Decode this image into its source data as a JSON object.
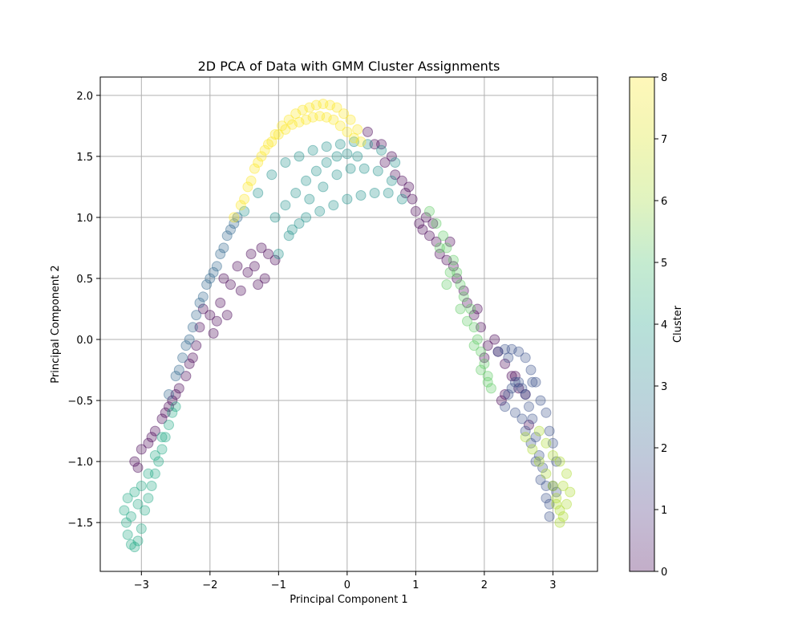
{
  "chart_data": {
    "type": "scatter",
    "title": "2D PCA of Data with GMM Cluster Assignments",
    "xlabel": "Principal Component 1",
    "ylabel": "Principal Component 2",
    "xlim": [
      -3.6,
      3.65
    ],
    "ylim": [
      -1.9,
      2.15
    ],
    "x_ticks": [
      "−3",
      "−2",
      "−1",
      "0",
      "1",
      "2",
      "3"
    ],
    "y_ticks": [
      "−1.5",
      "−1.0",
      "−0.5",
      "0.0",
      "0.5",
      "1.0",
      "1.5",
      "2.0"
    ],
    "grid": true,
    "colorbar": {
      "label": "Cluster",
      "range": [
        0,
        8
      ],
      "ticks": [
        "0",
        "1",
        "2",
        "3",
        "4",
        "5",
        "6",
        "7",
        "8"
      ],
      "colormap": "viridis"
    },
    "clusters": [
      {
        "cluster": 0,
        "color": "#440154",
        "points": [
          [
            -3.1,
            -1.0
          ],
          [
            -3.0,
            -0.9
          ],
          [
            -2.9,
            -0.85
          ],
          [
            -2.8,
            -0.75
          ],
          [
            -2.7,
            -0.65
          ],
          [
            -2.6,
            -0.55
          ],
          [
            -2.55,
            -0.5
          ],
          [
            -2.45,
            -0.4
          ],
          [
            -2.35,
            -0.3
          ],
          [
            -2.3,
            -0.2
          ],
          [
            -2.2,
            -0.05
          ],
          [
            -2.15,
            0.1
          ],
          [
            -2.1,
            0.25
          ],
          [
            -2.0,
            0.2
          ],
          [
            -1.95,
            0.05
          ],
          [
            -1.85,
            0.3
          ],
          [
            -1.75,
            0.2
          ],
          [
            -1.7,
            0.45
          ],
          [
            -1.55,
            0.4
          ],
          [
            -1.45,
            0.55
          ],
          [
            -1.35,
            0.6
          ],
          [
            -1.3,
            0.45
          ],
          [
            -1.25,
            0.75
          ],
          [
            -1.15,
            0.7
          ],
          [
            -1.05,
            0.65
          ],
          [
            -1.2,
            0.5
          ],
          [
            -1.4,
            0.7
          ],
          [
            -1.6,
            0.6
          ],
          [
            -1.8,
            0.5
          ],
          [
            -1.9,
            0.15
          ],
          [
            -2.25,
            -0.15
          ],
          [
            -2.5,
            -0.45
          ],
          [
            -2.65,
            -0.6
          ],
          [
            -2.85,
            -0.8
          ],
          [
            -3.05,
            -1.05
          ],
          [
            0.3,
            1.7
          ],
          [
            0.4,
            1.6
          ],
          [
            0.5,
            1.6
          ],
          [
            0.55,
            1.45
          ],
          [
            0.65,
            1.5
          ],
          [
            0.7,
            1.35
          ],
          [
            0.8,
            1.3
          ],
          [
            0.85,
            1.2
          ],
          [
            0.95,
            1.15
          ],
          [
            1.0,
            1.05
          ],
          [
            1.05,
            0.95
          ],
          [
            1.1,
            0.9
          ],
          [
            1.15,
            1.0
          ],
          [
            1.2,
            0.85
          ],
          [
            1.3,
            0.8
          ],
          [
            1.35,
            0.7
          ],
          [
            1.45,
            0.65
          ],
          [
            1.55,
            0.6
          ],
          [
            1.6,
            0.5
          ],
          [
            1.7,
            0.4
          ],
          [
            1.75,
            0.3
          ],
          [
            1.85,
            0.2
          ],
          [
            1.95,
            0.1
          ],
          [
            2.05,
            -0.05
          ],
          [
            2.15,
            0.0
          ],
          [
            2.2,
            -0.1
          ],
          [
            2.3,
            -0.2
          ],
          [
            2.4,
            -0.3
          ],
          [
            2.5,
            -0.4
          ],
          [
            2.6,
            -0.45
          ],
          [
            2.3,
            -0.45
          ],
          [
            2.45,
            -0.3
          ],
          [
            2.65,
            -0.7
          ],
          [
            2.0,
            -0.15
          ],
          [
            1.5,
            0.8
          ],
          [
            1.9,
            0.25
          ],
          [
            0.9,
            1.25
          ],
          [
            1.25,
            0.95
          ],
          [
            2.25,
            -0.5
          ]
        ]
      },
      {
        "cluster": 2,
        "color": "#3b528b",
        "points": [
          [
            2.2,
            -0.1
          ],
          [
            2.3,
            -0.08
          ],
          [
            2.4,
            -0.08
          ],
          [
            2.5,
            -0.1
          ],
          [
            2.6,
            -0.15
          ],
          [
            2.68,
            -0.25
          ],
          [
            2.75,
            -0.35
          ],
          [
            2.82,
            -0.5
          ],
          [
            2.9,
            -0.6
          ],
          [
            2.95,
            -0.75
          ],
          [
            3.0,
            -0.85
          ],
          [
            3.05,
            -1.0
          ],
          [
            3.0,
            -1.2
          ],
          [
            2.95,
            -1.35
          ],
          [
            2.9,
            -1.2
          ],
          [
            2.85,
            -1.05
          ],
          [
            2.8,
            -0.95
          ],
          [
            2.75,
            -0.8
          ],
          [
            2.7,
            -0.65
          ],
          [
            2.65,
            -0.55
          ],
          [
            2.6,
            -0.45
          ],
          [
            2.55,
            -0.4
          ],
          [
            2.5,
            -0.35
          ],
          [
            2.45,
            -0.35
          ],
          [
            2.4,
            -0.4
          ],
          [
            2.35,
            -0.45
          ],
          [
            2.3,
            -0.55
          ],
          [
            2.45,
            -0.6
          ],
          [
            2.55,
            -0.65
          ],
          [
            2.6,
            -0.75
          ],
          [
            2.68,
            -0.85
          ],
          [
            2.75,
            -1.0
          ],
          [
            2.82,
            -1.15
          ],
          [
            2.9,
            -1.3
          ],
          [
            2.95,
            -1.45
          ],
          [
            3.05,
            -1.25
          ],
          [
            2.7,
            -0.35
          ],
          [
            2.35,
            -0.15
          ]
        ]
      },
      {
        "cluster": 3,
        "color": "#31688e",
        "points": [
          [
            -2.6,
            -0.45
          ],
          [
            -2.5,
            -0.3
          ],
          [
            -2.4,
            -0.15
          ],
          [
            -2.3,
            0.0
          ],
          [
            -2.2,
            0.2
          ],
          [
            -2.1,
            0.35
          ],
          [
            -2.0,
            0.5
          ],
          [
            -1.9,
            0.6
          ],
          [
            -1.8,
            0.75
          ],
          [
            -1.7,
            0.9
          ],
          [
            -1.6,
            1.0
          ],
          [
            -2.45,
            -0.25
          ],
          [
            -2.35,
            -0.05
          ],
          [
            -2.25,
            0.1
          ],
          [
            -2.15,
            0.3
          ],
          [
            -2.05,
            0.45
          ],
          [
            -1.95,
            0.55
          ],
          [
            -1.85,
            0.7
          ],
          [
            -1.75,
            0.85
          ],
          [
            -1.65,
            0.95
          ]
        ]
      },
      {
        "cluster": 5,
        "color": "#21918c",
        "points": [
          [
            -1.5,
            1.05
          ],
          [
            -1.3,
            1.2
          ],
          [
            -1.1,
            1.35
          ],
          [
            -0.9,
            1.45
          ],
          [
            -0.7,
            1.5
          ],
          [
            -0.5,
            1.55
          ],
          [
            -0.3,
            1.58
          ],
          [
            -0.1,
            1.6
          ],
          [
            0.1,
            1.62
          ],
          [
            0.3,
            1.6
          ],
          [
            0.5,
            1.55
          ],
          [
            0.7,
            1.45
          ],
          [
            -1.05,
            1.0
          ],
          [
            -0.9,
            1.1
          ],
          [
            -0.75,
            1.2
          ],
          [
            -0.6,
            1.3
          ],
          [
            -0.45,
            1.38
          ],
          [
            -0.3,
            1.45
          ],
          [
            -0.15,
            1.5
          ],
          [
            0.0,
            1.52
          ],
          [
            0.15,
            1.5
          ],
          [
            -0.8,
            0.9
          ],
          [
            -0.6,
            1.0
          ],
          [
            -0.4,
            1.05
          ],
          [
            -0.2,
            1.1
          ],
          [
            0.0,
            1.15
          ],
          [
            0.2,
            1.18
          ],
          [
            0.4,
            1.2
          ],
          [
            0.6,
            1.2
          ],
          [
            0.8,
            1.15
          ],
          [
            -1.0,
            0.7
          ],
          [
            -0.85,
            0.85
          ],
          [
            -0.7,
            0.95
          ],
          [
            -0.55,
            1.15
          ],
          [
            -0.35,
            1.25
          ],
          [
            -0.15,
            1.35
          ],
          [
            0.05,
            1.4
          ],
          [
            0.25,
            1.4
          ],
          [
            0.45,
            1.38
          ],
          [
            0.65,
            1.3
          ]
        ]
      },
      {
        "cluster": 5,
        "color": "#22a884",
        "points": [
          [
            -3.25,
            -1.4
          ],
          [
            -3.22,
            -1.5
          ],
          [
            -3.2,
            -1.6
          ],
          [
            -3.15,
            -1.68
          ],
          [
            -3.1,
            -1.7
          ],
          [
            -3.05,
            -1.65
          ],
          [
            -3.0,
            -1.55
          ],
          [
            -2.95,
            -1.4
          ],
          [
            -2.9,
            -1.3
          ],
          [
            -2.85,
            -1.2
          ],
          [
            -2.8,
            -1.1
          ],
          [
            -2.75,
            -1.0
          ],
          [
            -2.7,
            -0.9
          ],
          [
            -2.65,
            -0.8
          ],
          [
            -2.6,
            -0.7
          ],
          [
            -2.55,
            -0.6
          ],
          [
            -2.5,
            -0.55
          ],
          [
            -3.2,
            -1.3
          ],
          [
            -3.1,
            -1.25
          ],
          [
            -3.0,
            -1.2
          ],
          [
            -2.9,
            -1.1
          ],
          [
            -2.8,
            -0.95
          ],
          [
            -2.7,
            -0.8
          ],
          [
            -3.15,
            -1.45
          ],
          [
            -3.05,
            -1.35
          ]
        ]
      },
      {
        "cluster": 6,
        "color": "#5ec962",
        "points": [
          [
            1.2,
            1.05
          ],
          [
            1.3,
            0.95
          ],
          [
            1.4,
            0.85
          ],
          [
            1.45,
            0.75
          ],
          [
            1.55,
            0.65
          ],
          [
            1.6,
            0.55
          ],
          [
            1.65,
            0.45
          ],
          [
            1.7,
            0.35
          ],
          [
            1.8,
            0.25
          ],
          [
            1.85,
            0.1
          ],
          [
            1.9,
            0.0
          ],
          [
            1.95,
            -0.1
          ],
          [
            2.0,
            -0.2
          ],
          [
            2.05,
            -0.3
          ],
          [
            2.1,
            -0.4
          ],
          [
            1.75,
            0.15
          ],
          [
            1.85,
            -0.05
          ],
          [
            1.95,
            -0.25
          ],
          [
            2.05,
            -0.35
          ],
          [
            1.5,
            0.55
          ],
          [
            1.65,
            0.25
          ],
          [
            1.35,
            0.75
          ],
          [
            1.45,
            0.45
          ]
        ]
      },
      {
        "cluster": 7,
        "color": "#addc30",
        "points": [
          [
            2.6,
            -0.8
          ],
          [
            2.7,
            -0.9
          ],
          [
            2.8,
            -1.0
          ],
          [
            2.9,
            -1.1
          ],
          [
            3.0,
            -1.2
          ],
          [
            3.05,
            -1.3
          ],
          [
            3.1,
            -1.4
          ],
          [
            3.1,
            -1.5
          ],
          [
            3.15,
            -1.45
          ],
          [
            3.2,
            -1.35
          ],
          [
            3.25,
            -1.25
          ],
          [
            3.2,
            -1.1
          ],
          [
            3.1,
            -1.0
          ],
          [
            3.0,
            -0.95
          ],
          [
            2.9,
            -0.85
          ],
          [
            2.8,
            -0.75
          ],
          [
            3.15,
            -1.2
          ],
          [
            3.05,
            -1.35
          ]
        ]
      },
      {
        "cluster": 8,
        "color": "#fde725",
        "points": [
          [
            -1.65,
            1.0
          ],
          [
            -1.55,
            1.1
          ],
          [
            -1.45,
            1.25
          ],
          [
            -1.35,
            1.4
          ],
          [
            -1.25,
            1.5
          ],
          [
            -1.15,
            1.6
          ],
          [
            -1.05,
            1.68
          ],
          [
            -0.95,
            1.75
          ],
          [
            -0.85,
            1.8
          ],
          [
            -0.75,
            1.85
          ],
          [
            -0.65,
            1.88
          ],
          [
            -0.55,
            1.9
          ],
          [
            -0.45,
            1.92
          ],
          [
            -0.35,
            1.93
          ],
          [
            -0.25,
            1.92
          ],
          [
            -0.15,
            1.9
          ],
          [
            -0.05,
            1.85
          ],
          [
            0.05,
            1.8
          ],
          [
            0.15,
            1.72
          ],
          [
            -1.5,
            1.15
          ],
          [
            -1.4,
            1.3
          ],
          [
            -1.3,
            1.45
          ],
          [
            -1.2,
            1.55
          ],
          [
            -1.1,
            1.62
          ],
          [
            -1.0,
            1.68
          ],
          [
            -0.9,
            1.72
          ],
          [
            -0.8,
            1.76
          ],
          [
            -0.7,
            1.78
          ],
          [
            -0.6,
            1.8
          ],
          [
            -0.5,
            1.82
          ],
          [
            -0.4,
            1.83
          ],
          [
            -0.3,
            1.82
          ],
          [
            -0.2,
            1.8
          ],
          [
            -0.1,
            1.75
          ],
          [
            0.0,
            1.7
          ],
          [
            0.1,
            1.65
          ],
          [
            0.2,
            1.62
          ]
        ]
      }
    ]
  }
}
